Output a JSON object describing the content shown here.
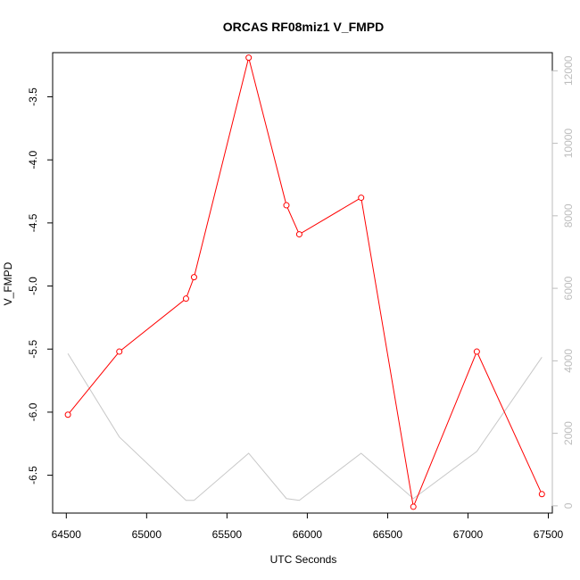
{
  "chart_data": {
    "type": "line",
    "title": "ORCAS RF08miz1 V_FMPD",
    "xlabel": "UTC Seconds",
    "ylabel": "V_FMPD",
    "x_ticks": [
      "64500",
      "65000",
      "65500",
      "66000",
      "66500",
      "67000",
      "67500"
    ],
    "y_ticks": [
      "-6.5",
      "-6.0",
      "-5.5",
      "-5.0",
      "-4.5",
      "-4.0",
      "-3.5"
    ],
    "y2_ticks": [
      "0",
      "2000",
      "4000",
      "6000",
      "8000",
      "10000",
      "12000"
    ],
    "xlim": [
      64415,
      67525
    ],
    "ylim": [
      -6.8,
      -3.15
    ],
    "y2lim": [
      -200,
      12500
    ],
    "grid": false,
    "series": [
      {
        "axis": "left",
        "color": "#ff0000",
        "marker": "open-circle",
        "x": [
          64510,
          64830,
          65245,
          65295,
          65635,
          65870,
          65950,
          66335,
          66660,
          67055,
          67460
        ],
        "y": [
          -6.02,
          -5.52,
          -5.1,
          -4.93,
          -3.19,
          -4.36,
          -4.59,
          -4.3,
          -6.75,
          -5.52,
          -6.65
        ]
      },
      {
        "axis": "right",
        "color": "#c8c8c8",
        "marker": "none",
        "x": [
          64510,
          64830,
          65245,
          65295,
          65635,
          65870,
          65950,
          66335,
          66660,
          67055,
          67460
        ],
        "y": [
          4200,
          1900,
          150,
          150,
          1450,
          200,
          150,
          1450,
          200,
          1500,
          4100
        ]
      }
    ]
  }
}
